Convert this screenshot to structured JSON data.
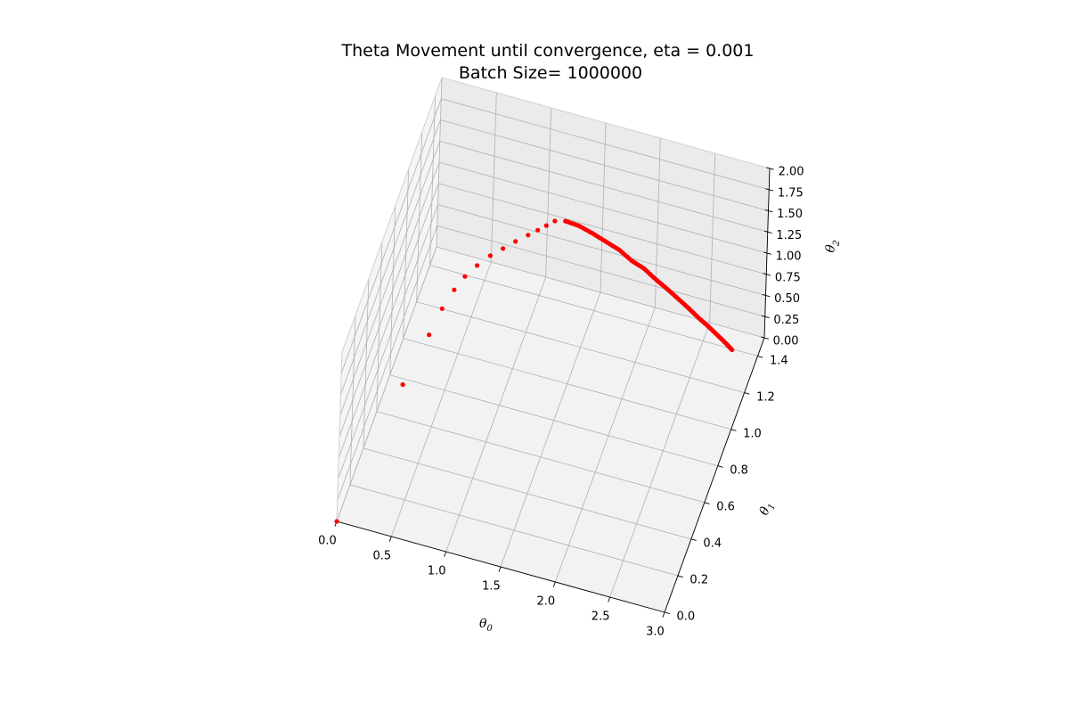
{
  "chart_data": {
    "type": "scatter",
    "projection": "3d",
    "title": "Theta Movement until convergence, eta = 0.001",
    "subtitle": "Batch Size= 1000000",
    "xlabel": "θ0",
    "ylabel": "θ1",
    "zlabel": "θ2",
    "xlim": [
      0,
      3
    ],
    "ylim": [
      0,
      1.5
    ],
    "zlim": [
      0,
      2
    ],
    "x_ticks": [
      "0.0",
      "0.5",
      "1.0",
      "1.5",
      "2.0",
      "2.5",
      "3.0"
    ],
    "y_ticks": [
      "0.0",
      "0.2",
      "0.4",
      "0.6",
      "0.8",
      "1.0",
      "1.2",
      "1.4"
    ],
    "z_ticks": [
      "0.00",
      "0.25",
      "0.50",
      "0.75",
      "1.00",
      "1.25",
      "1.50",
      "1.75",
      "2.00"
    ],
    "grid": true,
    "marker_color": "#ff0000",
    "series": [
      {
        "x": [
          0.0,
          0.29,
          0.41,
          0.46,
          0.52,
          0.58,
          0.66,
          0.75,
          0.84,
          0.93,
          1.02,
          1.09,
          1.15,
          1.21,
          1.3,
          1.42,
          1.55,
          1.68,
          1.81,
          1.94,
          2.06,
          2.18,
          2.3,
          2.41,
          2.52,
          2.62,
          2.72,
          2.81,
          2.9,
          2.98
        ],
        "y": [
          0.0,
          0.49,
          0.68,
          0.79,
          0.87,
          0.93,
          0.98,
          1.03,
          1.07,
          1.11,
          1.15,
          1.18,
          1.21,
          1.24,
          1.25,
          1.25,
          1.24,
          1.23,
          1.22,
          1.2,
          1.19,
          1.17,
          1.15,
          1.13,
          1.11,
          1.09,
          1.07,
          1.05,
          1.03,
          1.01
        ],
        "z": [
          0.0,
          0.66,
          0.88,
          0.97,
          1.04,
          1.09,
          1.14,
          1.18,
          1.21,
          1.24,
          1.26,
          1.28,
          1.29,
          1.3,
          1.31,
          1.3,
          1.28,
          1.25,
          1.22,
          1.18,
          1.15,
          1.11,
          1.08,
          1.05,
          1.02,
          0.99,
          0.97,
          0.95,
          0.93,
          0.91
        ]
      }
    ]
  }
}
